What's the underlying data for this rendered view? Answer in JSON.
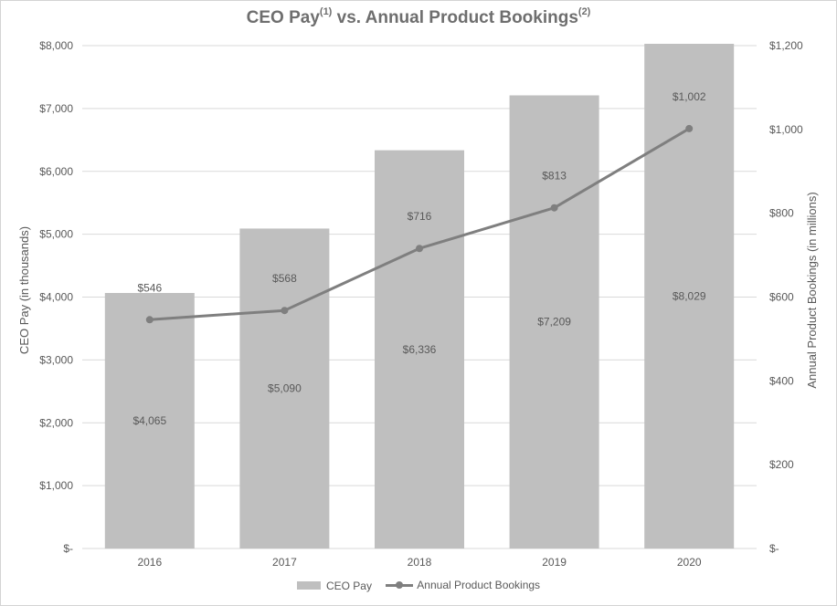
{
  "chart_data": {
    "type": "bar+line",
    "title": "CEO Pay",
    "title_sup1": "(1)",
    "title_mid": " vs. Annual Product Bookings",
    "title_sup2": "(2)",
    "categories": [
      "2016",
      "2017",
      "2018",
      "2019",
      "2020"
    ],
    "series": [
      {
        "name": "CEO Pay",
        "type": "bar",
        "axis": "left",
        "values": [
          4065,
          5090,
          6336,
          7209,
          8029
        ],
        "labels": [
          "$4,065",
          "$5,090",
          "$6,336",
          "$7,209",
          "$8,029"
        ],
        "color": "#bfbfbf"
      },
      {
        "name": "Annual Product Bookings",
        "type": "line",
        "axis": "right",
        "values": [
          546,
          568,
          716,
          813,
          1002
        ],
        "labels": [
          "$546",
          "$568",
          "$716",
          "$813",
          "$1,002"
        ],
        "color": "#7f7f7f"
      }
    ],
    "y_left": {
      "label": "CEO Pay (in thousands)",
      "min": 0,
      "max": 8000,
      "ticks": [
        0,
        1000,
        2000,
        3000,
        4000,
        5000,
        6000,
        7000,
        8000
      ],
      "tick_labels": [
        "$-",
        "$1,000",
        "$2,000",
        "$3,000",
        "$4,000",
        "$5,000",
        "$6,000",
        "$7,000",
        "$8,000"
      ]
    },
    "y_right": {
      "label": "Annual Product Bookings (in millions)",
      "min": 0,
      "max": 1200,
      "ticks": [
        0,
        200,
        400,
        600,
        800,
        1000,
        1200
      ],
      "tick_labels": [
        "$-",
        "$200",
        "$400",
        "$600",
        "$800",
        "$1,000",
        "$1,200"
      ]
    },
    "grid": true,
    "legend_position": "bottom"
  },
  "colors": {
    "bar": "#bfbfbf",
    "line": "#7f7f7f",
    "text": "#595959",
    "grid": "#d9d9d9"
  }
}
